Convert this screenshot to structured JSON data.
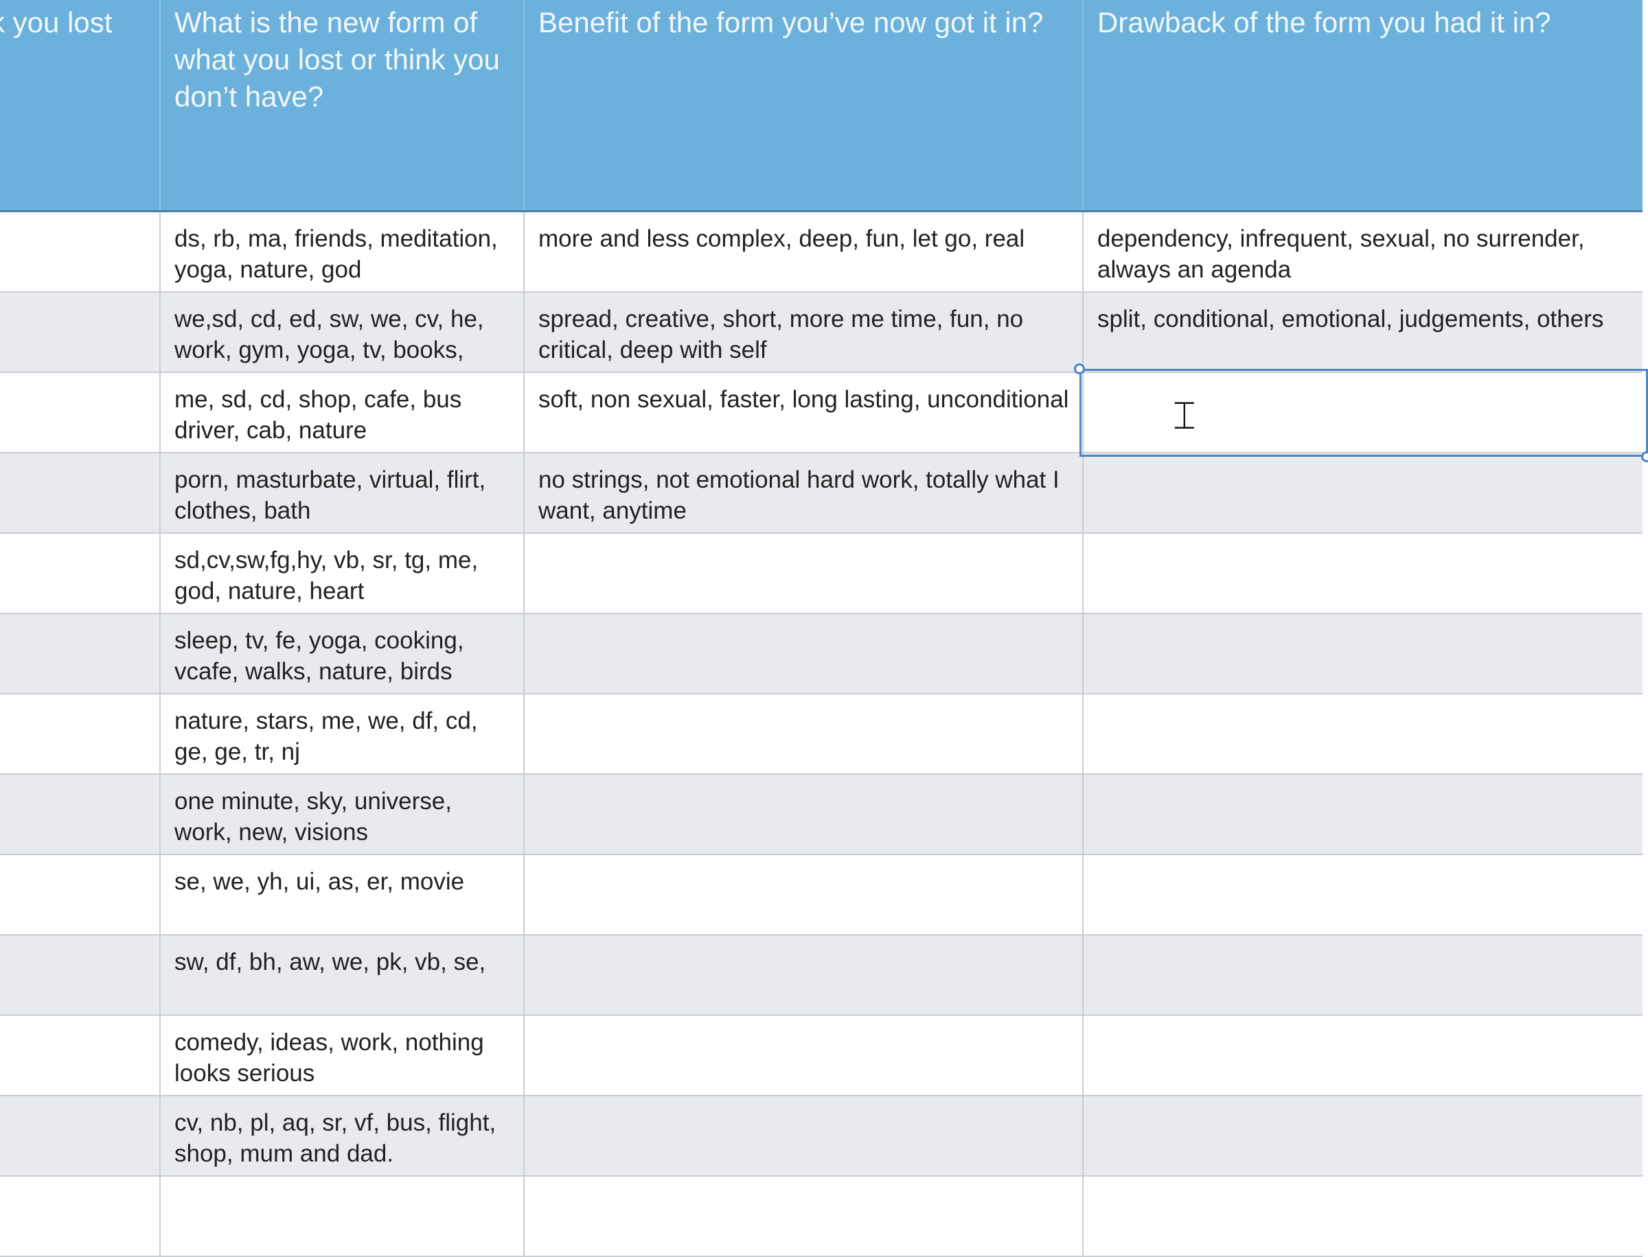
{
  "columns": [
    "k you lost",
    "What is the new form of what you lost or think you don’t have?",
    "Benefit of the form you’ve now got it in?",
    "Drawback of the form you had it in?"
  ],
  "rows": [
    [
      "",
      "ds, rb, ma, friends, meditation, yoga, nature, god",
      "more and less complex, deep, fun, let go, real",
      "dependency, infrequent, sexual, no surrender, always an agenda"
    ],
    [
      "",
      "we,sd, cd, ed, sw, we, cv, he, work, gym, yoga, tv, books,",
      "spread, creative, short, more me time, fun, no critical, deep with self",
      "split, conditional, emotional, judgements, others"
    ],
    [
      "",
      "me, sd, cd, shop, cafe, bus driver, cab, nature",
      "soft, non sexual, faster, long lasting, unconditional",
      ""
    ],
    [
      "",
      "porn, masturbate, virtual, flirt, clothes, bath",
      "no strings, not emotional hard work, totally what I want, anytime",
      ""
    ],
    [
      "",
      "sd,cv,sw,fg,hy, vb, sr, tg, me, god, nature, heart",
      "",
      ""
    ],
    [
      "",
      "sleep, tv, fe, yoga, cooking, vcafe, walks, nature, birds",
      "",
      ""
    ],
    [
      "",
      "nature, stars, me, we, df, cd, ge, ge, tr, nj",
      "",
      ""
    ],
    [
      "",
      "one minute, sky, universe, work, new, visions",
      "",
      ""
    ],
    [
      "",
      "se, we, yh, ui, as, er, movie",
      "",
      ""
    ],
    [
      "",
      "sw, df, bh, aw, we, pk, vb, se,",
      "",
      ""
    ],
    [
      "",
      "comedy, ideas, work, nothing looks serious",
      "",
      ""
    ],
    [
      "",
      "cv, nb, pl, aq, sr, vf, bus, flight, shop, mum and dad.",
      "",
      ""
    ],
    [
      "",
      "",
      "",
      ""
    ]
  ],
  "selected_cell": {
    "row": 3,
    "column": 4
  },
  "colors": {
    "header": "#6bb1db",
    "row_alt": "#e8eaee",
    "selection": "#4a86c8"
  },
  "cursor_icon": "text-cursor-icon"
}
